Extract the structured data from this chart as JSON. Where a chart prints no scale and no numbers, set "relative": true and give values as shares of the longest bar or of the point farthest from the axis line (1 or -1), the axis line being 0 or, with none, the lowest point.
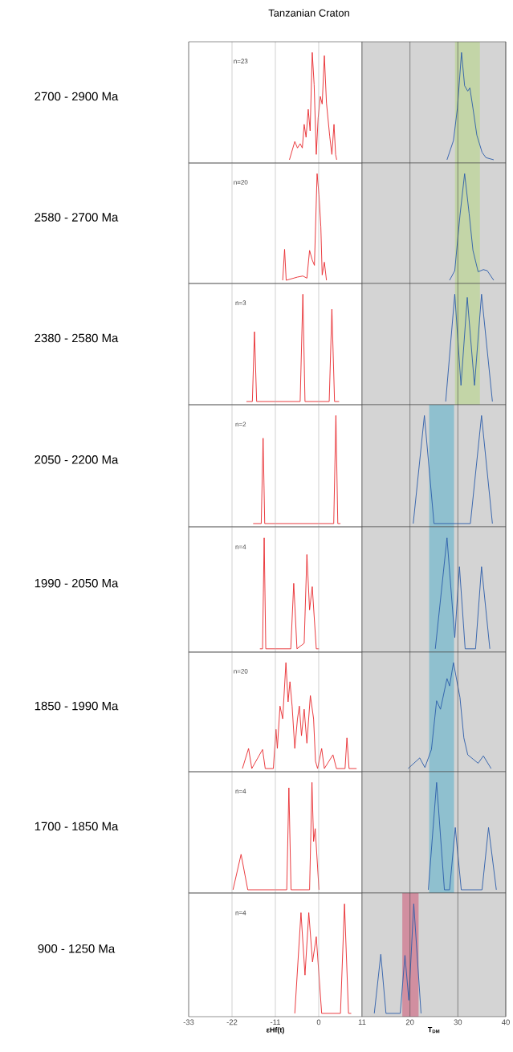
{
  "chart_data": [
    {
      "type": "line",
      "title": "Tanzanian Craton",
      "ylabel": "2700 - 2900 Ma",
      "annotations": [
        "n=23"
      ],
      "relative": true,
      "xlim": [
        -33,
        11
      ],
      "xticks": [
        -33,
        -22,
        -11,
        0,
        11
      ],
      "grid": "x",
      "tick_labels": false,
      "series": [
        {
          "color": "#e8262a",
          "x": [
            -7.43,
            -6.07,
            -5.39,
            -4.71,
            -4.16,
            -3.69,
            -3.21,
            -2.66,
            -2.18,
            -1.64,
            -1.16,
            -0.62,
            -0.14,
            0.41,
            0.88,
            1.43,
            1.97,
            2.79,
            3.34,
            3.88,
            4.29,
            4.56
          ],
          "values": [
            0,
            0.17,
            0.11,
            0.15,
            0.11,
            0.33,
            0.21,
            0.47,
            0.27,
            1,
            0.7,
            0.05,
            0.39,
            0.59,
            0.52,
            0.97,
            0.53,
            0.22,
            0.05,
            0.33,
            0.05,
            0
          ]
        }
      ]
    },
    {
      "type": "line",
      "relative": true,
      "xlim": [
        10,
        40
      ],
      "xticks": [
        20,
        30,
        40
      ],
      "grid": "x",
      "tick_labels": false,
      "bands": [
        {
          "axis": "x",
          "from": 10,
          "to": 40,
          "color": "#d4d4d4"
        },
        {
          "axis": "x",
          "from": 29.4,
          "to": 34.6,
          "color": "#c3d5a7"
        }
      ],
      "series": [
        {
          "color": "#2a5caa",
          "x": [
            27.73,
            29.08,
            29.9,
            30.76,
            31.41,
            32.06,
            32.5,
            33.15,
            33.96,
            35.05,
            35.86,
            37.48
          ],
          "values": [
            0,
            0.18,
            0.48,
            1,
            0.69,
            0.64,
            0.67,
            0.48,
            0.23,
            0.07,
            0.02,
            0
          ]
        }
      ]
    },
    {
      "type": "line",
      "ylabel": "2580 - 2700 Ma",
      "annotations": [
        "n=20"
      ],
      "relative": true,
      "xlim": [
        -33,
        11
      ],
      "xticks": [
        -33,
        -22,
        -11,
        0,
        11
      ],
      "grid": "x",
      "tick_labels": false,
      "series": [
        {
          "color": "#e8262a",
          "x": [
            -9.14,
            -8.66,
            -8.25,
            -5.39,
            -4.02,
            -3.0,
            -2.32,
            -1.64,
            -1.09,
            -0.41,
            0.07,
            0.54,
            0.88,
            1.43,
            1.97
          ],
          "values": [
            0,
            0.29,
            0,
            0.03,
            0.04,
            0.02,
            0.28,
            0.19,
            0.14,
            1,
            0.8,
            0.5,
            0.05,
            0.17,
            0
          ]
        }
      ]
    },
    {
      "type": "line",
      "relative": true,
      "xlim": [
        10,
        40
      ],
      "xticks": [
        20,
        30,
        40
      ],
      "grid": "x",
      "tick_labels": false,
      "bands": [
        {
          "axis": "x",
          "from": 10,
          "to": 40,
          "color": "#d4d4d4"
        },
        {
          "axis": "x",
          "from": 29.4,
          "to": 34.6,
          "color": "#c3d5a7"
        }
      ],
      "series": [
        {
          "color": "#2a5caa",
          "x": [
            28.27,
            29.35,
            30.44,
            31.41,
            32.34,
            33.15,
            34.23,
            35.32,
            36.13,
            37.48
          ],
          "values": [
            0,
            0.09,
            0.61,
            1,
            0.63,
            0.28,
            0.08,
            0.1,
            0.09,
            0
          ]
        }
      ]
    },
    {
      "type": "line",
      "ylabel": "2380 - 2580 Ma",
      "annotations": [
        "n=3"
      ],
      "relative": true,
      "xlim": [
        -33,
        11
      ],
      "xticks": [
        -33,
        -22,
        -11,
        0,
        11
      ],
      "grid": "x",
      "tick_labels": false,
      "series": [
        {
          "color": "#e8262a",
          "x": [
            -18.34,
            -16.84,
            -16.3,
            -15.75,
            -4.71,
            -4.02,
            -3.48,
            2.66,
            3.34,
            4.02,
            5.18
          ],
          "values": [
            0,
            0,
            0.65,
            0,
            0,
            1,
            0,
            0,
            0.86,
            0,
            0
          ]
        }
      ]
    },
    {
      "type": "line",
      "relative": true,
      "xlim": [
        10,
        40
      ],
      "xticks": [
        20,
        30,
        40
      ],
      "grid": "x",
      "tick_labels": false,
      "bands": [
        {
          "axis": "x",
          "from": 10,
          "to": 40,
          "color": "#d4d4d4"
        },
        {
          "axis": "x",
          "from": 29.4,
          "to": 34.6,
          "color": "#c3d5a7"
        }
      ],
      "series": [
        {
          "color": "#2a5caa",
          "x": [
            27.46,
            29.35,
            30.65,
            31.96,
            33.47,
            34.94,
            37.21
          ],
          "values": [
            0,
            1,
            0.15,
            0.97,
            0.15,
            1,
            0
          ]
        }
      ]
    },
    {
      "type": "line",
      "ylabel": "2050 - 2200 Ma",
      "annotations": [
        "n=2"
      ],
      "relative": true,
      "xlim": [
        -33,
        11
      ],
      "xticks": [
        -33,
        -22,
        -11,
        0,
        11
      ],
      "grid": "x",
      "tick_labels": false,
      "series": [
        {
          "color": "#e8262a",
          "x": [
            -16.64,
            -14.59,
            -14.11,
            -13.7,
            3.81,
            4.36,
            4.84,
            5.52
          ],
          "values": [
            0,
            0,
            0.79,
            0,
            0,
            1,
            0,
            0
          ]
        }
      ]
    },
    {
      "type": "line",
      "relative": true,
      "xlim": [
        10,
        40
      ],
      "xticks": [
        20,
        30,
        40
      ],
      "grid": "x",
      "tick_labels": false,
      "bands": [
        {
          "axis": "x",
          "from": 10,
          "to": 40,
          "color": "#d4d4d4"
        },
        {
          "axis": "x",
          "from": 24.0,
          "to": 29.2,
          "color": "#8fc0cf"
        }
      ],
      "series": [
        {
          "color": "#2a5caa",
          "x": [
            20.68,
            23.01,
            25.02,
            32.61,
            34.94,
            37.21
          ],
          "values": [
            0,
            1,
            0,
            0,
            1,
            0
          ]
        }
      ]
    },
    {
      "type": "line",
      "ylabel": "1990 - 2050 Ma",
      "annotations": [
        "n=4"
      ],
      "relative": true,
      "xlim": [
        -33,
        11
      ],
      "xticks": [
        -33,
        -22,
        -11,
        0,
        11
      ],
      "grid": "x",
      "tick_labels": false,
      "series": [
        {
          "color": "#e8262a",
          "x": [
            -14.93,
            -14.25,
            -13.84,
            -13.43,
            -7.09,
            -6.34,
            -5.52,
            -3.69,
            -3.0,
            -2.32,
            -1.64,
            -0.62,
            0.07
          ],
          "values": [
            0,
            0,
            1,
            0,
            0,
            0.59,
            0,
            0.05,
            0.85,
            0.35,
            0.56,
            0,
            0
          ]
        }
      ]
    },
    {
      "type": "line",
      "relative": true,
      "xlim": [
        10,
        40
      ],
      "xticks": [
        20,
        30,
        40
      ],
      "grid": "x",
      "tick_labels": false,
      "bands": [
        {
          "axis": "x",
          "from": 10,
          "to": 40,
          "color": "#d4d4d4"
        },
        {
          "axis": "x",
          "from": 24.0,
          "to": 29.2,
          "color": "#8fc0cf"
        }
      ],
      "series": [
        {
          "color": "#2a5caa",
          "x": [
            25.29,
            27.73,
            29.35,
            30.33,
            31.52,
            33.69,
            34.94,
            36.67
          ],
          "values": [
            0,
            1,
            0.1,
            0.74,
            0,
            0,
            0.74,
            0
          ]
        }
      ]
    },
    {
      "type": "line",
      "ylabel": "1850 - 1990 Ma",
      "annotations": [
        "n=20"
      ],
      "relative": true,
      "xlim": [
        -33,
        11
      ],
      "xticks": [
        -33,
        -22,
        -11,
        0,
        11
      ],
      "grid": "x",
      "tick_labels": false,
      "series": [
        {
          "color": "#e8262a",
          "x": [
            -19.36,
            -17.8,
            -16.98,
            -14.25,
            -13.57,
            -11.52,
            -10.84,
            -10.5,
            -9.82,
            -9.14,
            -8.32,
            -7.77,
            -7.3,
            -6.75,
            -6.07,
            -5.39,
            -4.91,
            -4.37,
            -3.69,
            -3.0,
            -2.12,
            -1.3,
            -0.82,
            -0.28,
            0.75,
            1.43,
            3.61,
            4.5,
            6.68,
            7.16,
            7.7,
            9.61
          ],
          "values": [
            0,
            0.19,
            0,
            0.18,
            0,
            0,
            0.37,
            0.19,
            0.59,
            0.47,
            1,
            0.63,
            0.82,
            0.59,
            0.19,
            0.47,
            0.59,
            0.31,
            0.56,
            0.24,
            0.69,
            0.47,
            0.07,
            0,
            0.19,
            0,
            0.13,
            0,
            0,
            0.29,
            0,
            0
          ]
        }
      ]
    },
    {
      "type": "line",
      "relative": true,
      "xlim": [
        10,
        40
      ],
      "xticks": [
        20,
        30,
        40
      ],
      "grid": "x",
      "tick_labels": false,
      "bands": [
        {
          "axis": "x",
          "from": 10,
          "to": 40,
          "color": "#d4d4d4"
        },
        {
          "axis": "x",
          "from": 24.0,
          "to": 29.2,
          "color": "#8fc0cf"
        }
      ],
      "series": [
        {
          "color": "#2a5caa",
          "x": [
            19.6,
            22.04,
            23.12,
            24.48,
            25.56,
            26.37,
            27.73,
            28.27,
            29.08,
            30.44,
            31.25,
            32.06,
            33.15,
            34.23,
            35.32,
            36.94
          ],
          "values": [
            0,
            0.1,
            0.01,
            0.18,
            0.64,
            0.56,
            0.85,
            0.78,
            1,
            0.67,
            0.29,
            0.13,
            0.09,
            0.05,
            0.12,
            0
          ]
        }
      ]
    },
    {
      "type": "line",
      "ylabel": "1700 - 1850 Ma",
      "annotations": [
        "n=4"
      ],
      "relative": true,
      "xlim": [
        -33,
        11
      ],
      "xticks": [
        -33,
        -22,
        -11,
        0,
        11
      ],
      "grid": "x",
      "tick_labels": false,
      "series": [
        {
          "color": "#e8262a",
          "x": [
            -21.75,
            -19.7,
            -18.0,
            -8.11,
            -7.57,
            -7.02,
            -2.32,
            -1.71,
            -1.3,
            -0.89,
            0.07
          ],
          "values": [
            0,
            0.33,
            0,
            0,
            0.95,
            0,
            0,
            1,
            0.45,
            0.57,
            0
          ]
        }
      ]
    },
    {
      "type": "line",
      "relative": true,
      "xlim": [
        10,
        40
      ],
      "xticks": [
        20,
        30,
        40
      ],
      "grid": "x",
      "tick_labels": false,
      "bands": [
        {
          "axis": "x",
          "from": 10,
          "to": 40,
          "color": "#d4d4d4"
        },
        {
          "axis": "x",
          "from": 24.0,
          "to": 29.2,
          "color": "#8fc0cf"
        }
      ],
      "series": [
        {
          "color": "#2a5caa",
          "x": [
            23.83,
            25.56,
            27.19,
            28.27,
            29.46,
            30.71,
            35.05,
            36.4,
            38.03
          ],
          "values": [
            0,
            1,
            0,
            0,
            0.58,
            0,
            0,
            0.58,
            0
          ]
        }
      ]
    },
    {
      "type": "line",
      "ylabel": "900 - 1250 Ma",
      "annotations": [
        "n=4"
      ],
      "relative": true,
      "xlabel": "εHf(t)",
      "xlim": [
        -33,
        11
      ],
      "xticks": [
        -33,
        -22,
        -11,
        0,
        11
      ],
      "grid": "x",
      "series": [
        {
          "color": "#e8262a",
          "x": [
            -6.07,
            -4.5,
            -3.48,
            -2.52,
            -1.57,
            -0.62,
            0.75,
            5.52,
            6.54,
            7.56,
            8.25
          ],
          "values": [
            0,
            0.92,
            0.35,
            0.92,
            0.47,
            0.7,
            0,
            0,
            1,
            0,
            0
          ]
        }
      ]
    },
    {
      "type": "line",
      "relative": true,
      "xlabel": "T$_{DM}$",
      "xlim": [
        10,
        40
      ],
      "xticks": [
        20,
        30,
        40
      ],
      "grid": "x",
      "bands": [
        {
          "axis": "x",
          "from": 10,
          "to": 40,
          "color": "#d4d4d4"
        },
        {
          "axis": "x",
          "from": 18.4,
          "to": 21.8,
          "color": "#d18fa0"
        }
      ],
      "series": [
        {
          "color": "#2a5caa",
          "x": [
            12.55,
            13.91,
            14.99,
            17.97,
            18.95,
            19.76,
            20.79,
            22.31
          ],
          "values": [
            0,
            0.54,
            0,
            0,
            0.53,
            0.12,
            1,
            0
          ]
        }
      ]
    }
  ]
}
